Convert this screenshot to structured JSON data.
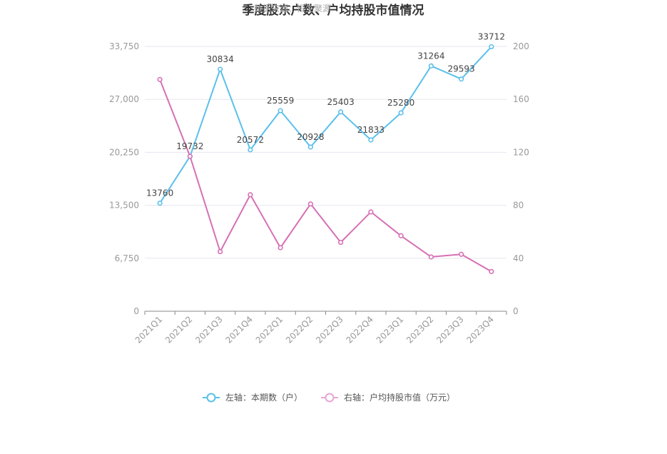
{
  "chart_data": {
    "type": "line",
    "title": "季度股东户数、户均持股市值情况",
    "watermark": "数据来源：恒生聚源",
    "categories": [
      "2021Q1",
      "2021Q2",
      "2021Q3",
      "2021Q4",
      "2022Q1",
      "2022Q2",
      "2022Q3",
      "2022Q4",
      "2023Q1",
      "2023Q2",
      "2023Q3",
      "2023Q4"
    ],
    "left_axis": {
      "min": 0,
      "max": 33750,
      "ticks": [
        0,
        6750,
        13500,
        20250,
        27000,
        33750
      ],
      "tick_labels": [
        "0",
        "6,750",
        "13,500",
        "20,250",
        "27,000",
        "33,750"
      ]
    },
    "right_axis": {
      "min": 0,
      "max": 200,
      "ticks": [
        0,
        40,
        80,
        120,
        160,
        200
      ],
      "tick_labels": [
        "0",
        "40",
        "80",
        "120",
        "160",
        "200"
      ]
    },
    "series": [
      {
        "name": "左轴：本期数（户）",
        "axis": "left",
        "color": "#5bc0eb",
        "values": [
          13760,
          19732,
          30834,
          20572,
          25559,
          20928,
          25403,
          21833,
          25280,
          31264,
          29593,
          33712
        ],
        "labels": [
          "13760",
          "19732",
          "30834",
          "20572",
          "25559",
          "20928",
          "25403",
          "21833",
          "25280",
          "31264",
          "29593",
          "33712"
        ]
      },
      {
        "name": "右轴：户均持股市值（万元）",
        "axis": "right",
        "color": "#d670b4",
        "values": [
          175,
          117,
          45,
          88,
          48,
          81,
          52,
          75,
          57,
          41,
          43,
          30
        ]
      }
    ],
    "legend_position": "bottom-center",
    "grid": true
  }
}
